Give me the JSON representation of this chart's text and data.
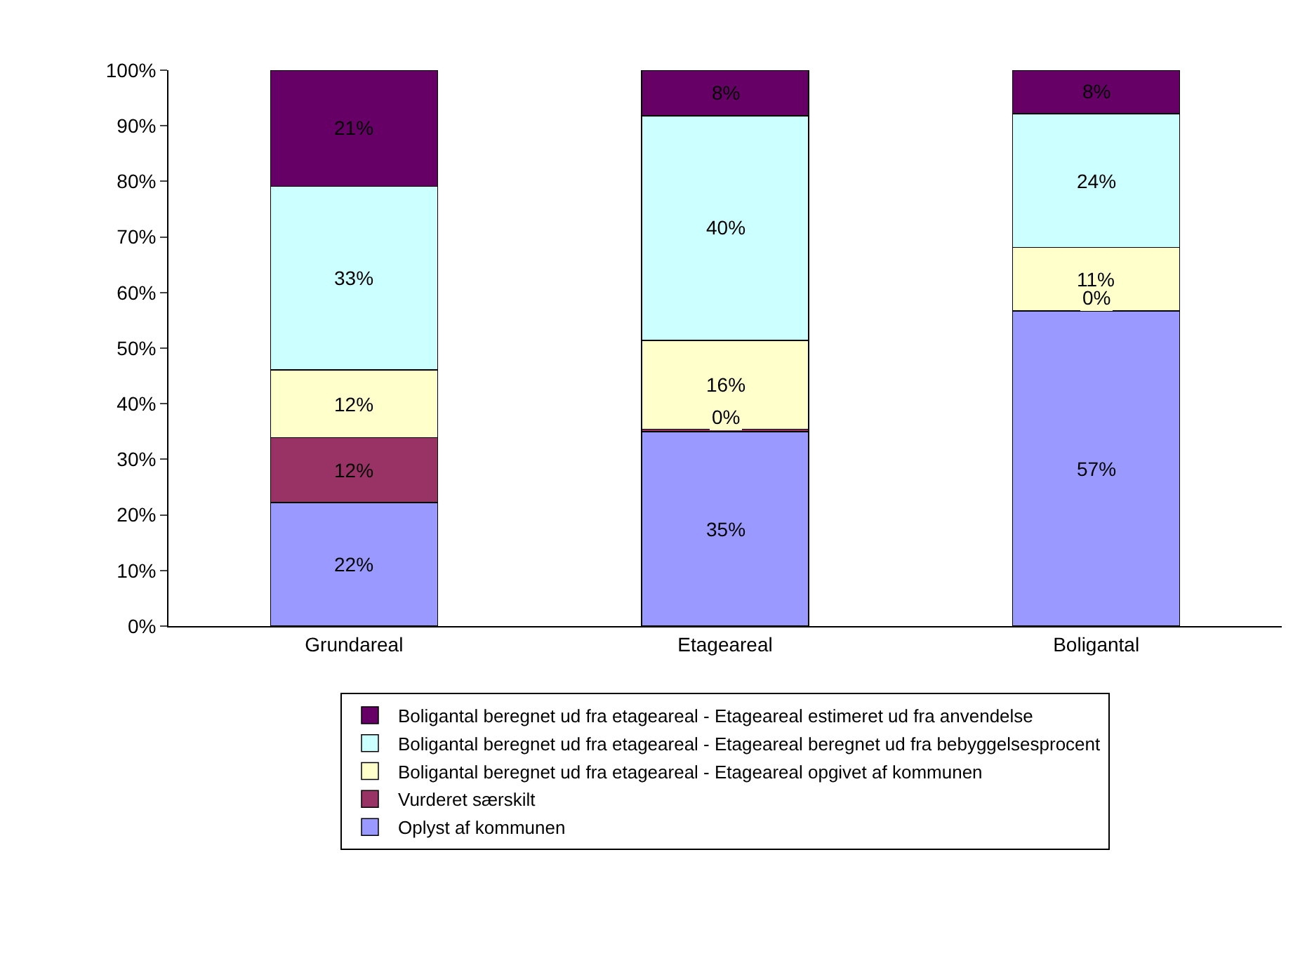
{
  "chart_data": {
    "type": "bar",
    "stacked": true,
    "categories": [
      "Grundareal",
      "Etageareal",
      "Boligantal"
    ],
    "series": [
      {
        "name": "Oplyst af kommunen",
        "color": "#9999ff",
        "values": [
          22.2,
          35.0,
          56.6
        ],
        "value_labels": [
          "22%",
          "35%",
          "57%"
        ]
      },
      {
        "name": "Vurderet særskilt",
        "color": "#993366",
        "values": [
          11.7,
          0.4,
          0.1
        ],
        "value_labels": [
          "12%",
          "0%",
          "0%"
        ]
      },
      {
        "name": "Boligantal beregnet ud fra etageareal - Etageareal opgivet af kommunen",
        "color": "#ffffcc",
        "values": [
          12.2,
          16.0,
          11.4
        ],
        "value_labels": [
          "12%",
          "16%",
          "11%"
        ]
      },
      {
        "name": "Boligantal beregnet ud fra etageareal - Etageareal beregnet ud fra bebyggelsesprocent",
        "color": "#ccffff",
        "values": [
          33.0,
          40.4,
          24.1
        ],
        "value_labels": [
          "33%",
          "40%",
          "24%"
        ]
      },
      {
        "name": "Boligantal beregnet ud fra etageareal - Etageareal estimeret ud fra anvendelse",
        "color": "#660066",
        "values": [
          20.9,
          8.2,
          7.8
        ],
        "value_labels": [
          "21%",
          "8%",
          "8%"
        ]
      }
    ],
    "ylim": [
      0,
      100
    ],
    "yticks": [
      {
        "value": 0,
        "label": "0%"
      },
      {
        "value": 10,
        "label": "10%"
      },
      {
        "value": 20,
        "label": "20%"
      },
      {
        "value": 30,
        "label": "30%"
      },
      {
        "value": 40,
        "label": "40%"
      },
      {
        "value": 50,
        "label": "50%"
      },
      {
        "value": 60,
        "label": "60%"
      },
      {
        "value": 70,
        "label": "70%"
      },
      {
        "value": 80,
        "label": "80%"
      },
      {
        "value": 90,
        "label": "90%"
      },
      {
        "value": 100,
        "label": "100%"
      }
    ],
    "grid": false,
    "legend": "bottom"
  }
}
